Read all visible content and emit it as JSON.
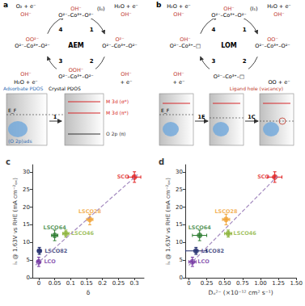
{
  "diagrams": [
    {
      "letter": "a",
      "mechanism": "AEM",
      "nodes": [
        {
          "ligand": "OH⁻",
          "site": "O²⁻–Co³⁺–O²⁻",
          "tag": "(I₀)"
        },
        {
          "ligand": "O²⁻",
          "site": "O²⁻–Co³⁺–O²⁻"
        },
        {
          "ligand": "OOH⁻",
          "site": "O²⁻–Co³⁺–O²⁻"
        },
        {
          "ligand": "OO²⁻",
          "site": "O²⁻–Co³⁺–O²⁻"
        }
      ],
      "steps": [
        {
          "number": "1",
          "reactant": "OH⁻",
          "product": "H₂O + e⁻"
        },
        {
          "number": "2",
          "reactant": "OH⁻",
          "product": "+ e⁻"
        },
        {
          "number": "3",
          "reactant": "OH⁻",
          "product": "H₂O + e⁻"
        },
        {
          "number": "4",
          "reactant": "OH⁻",
          "product": "O₂ + e⁻"
        }
      ],
      "pdos": {
        "left_title": "Adsorbate PDOS",
        "right_title": "Crystal PDOS",
        "fermi": "E_F",
        "adsorbate": "(O 2p)ads",
        "bands": [
          "M 3d (σ*)",
          "M 3d (π*)",
          "O 2p (π)"
        ],
        "steps": [
          "1"
        ]
      }
    },
    {
      "letter": "b",
      "mechanism": "LOM",
      "nodes": [
        {
          "ligand": "OH⁻",
          "site": "O²⁻–Co³⁺–O²⁻",
          "tag": "(I₁)"
        },
        {
          "ligand": "OO⁻",
          "site": "O²⁻–Co³⁺–O²⁻"
        },
        {
          "ligand": "",
          "site": "O²⁻–Co³⁺–□"
        },
        {
          "ligand": "OH⁻",
          "site": "O²⁻–Co³⁺–□"
        }
      ],
      "steps": [
        {
          "number": "1",
          "reactant": "OH⁻",
          "product": "H₂O + e⁻"
        },
        {
          "number": "2",
          "reactant": "",
          "product": "OO + e⁻"
        },
        {
          "number": "3",
          "reactant": "OH⁻",
          "product": "+ e⁻"
        },
        {
          "number": "4",
          "reactant": "OH⁻",
          "product": "H₂O + e⁻"
        }
      ],
      "pdos": {
        "fermi": "E_F",
        "steps": [
          "1E",
          "1C"
        ],
        "note": "Ligand hole (vacancy)"
      }
    }
  ],
  "chart_data": [
    {
      "type": "scatter",
      "title": "c",
      "x_label": "δ",
      "y_label": "iₛ @ 1.63V vs RHE (mA cm⁻²ₒₓ)",
      "xlim": [
        -0.02,
        0.33
      ],
      "xticks": [
        0,
        0.05,
        0.1,
        0.15,
        0.2,
        0.25,
        0.3
      ],
      "ylim": [
        0,
        32
      ],
      "yticks": [
        0,
        5,
        10,
        15,
        20,
        25,
        30
      ],
      "grid": false,
      "fit_line": {
        "x": [
          -0.01,
          0.31
        ],
        "values": [
          3.6,
          29.2
        ],
        "line_style": "dashed",
        "color": "#a58cc0"
      },
      "series": [
        {
          "name": "LCO",
          "color": "#7030a0",
          "x": [
            0
          ],
          "values": [
            4.5
          ],
          "x_error": [
            0.005
          ],
          "y_error": [
            1.3
          ]
        },
        {
          "name": "LSCO82",
          "color": "#1f2a6b",
          "x": [
            0.002
          ],
          "values": [
            7.6
          ],
          "x_error": [
            0.005
          ],
          "y_error": [
            1.0
          ]
        },
        {
          "name": "LSCO64",
          "color": "#2e7d32",
          "x": [
            0.05
          ],
          "values": [
            12
          ],
          "x_error": [
            0.01
          ],
          "y_error": [
            1.5
          ]
        },
        {
          "name": "LSCO46",
          "color": "#8cb33a",
          "x": [
            0.085
          ],
          "values": [
            12.5
          ],
          "x_error": [
            0.01
          ],
          "y_error": [
            1.0
          ]
        },
        {
          "name": "LSCO28",
          "color": "#f0a030",
          "x": [
            0.16
          ],
          "values": [
            16.5
          ],
          "x_error": [
            0.01
          ],
          "y_error": [
            1.5
          ]
        },
        {
          "name": "SCO",
          "color": "#e02020",
          "x": [
            0.3
          ],
          "values": [
            28.5
          ],
          "x_error": [
            0.02
          ],
          "y_error": [
            1.5
          ]
        }
      ]
    },
    {
      "type": "scatter",
      "title": "d",
      "x_label": "Dₒ²⁻ (×10⁻¹² cm² s⁻¹)",
      "y_label": "iₛ @ 1.63V vs RHE (mA cm⁻²ₒₓ)",
      "xlim": [
        -0.05,
        1.5
      ],
      "xticks": [
        0,
        0.25,
        {
          "value": 0.5,
          "label": "0.50"
        },
        0.75,
        {
          "value": 1,
          "label": "1.00"
        },
        1.25,
        {
          "value": 1.5,
          "label": "1.50"
        }
      ],
      "ylim": [
        0,
        32
      ],
      "yticks": [
        0,
        5,
        10,
        15,
        20,
        25,
        30
      ],
      "grid": false,
      "fit_line": {
        "x": [
          0,
          1.25
        ],
        "values": [
          3.5,
          29
        ],
        "line_style": "dashed",
        "color": "#a58cc0"
      },
      "series": [
        {
          "name": "LCO",
          "color": "#7030a0",
          "x": [
            0.05
          ],
          "values": [
            4.5
          ],
          "x_error": [
            0.05
          ],
          "y_error": [
            1.3
          ]
        },
        {
          "name": "LSCO82",
          "color": "#1f2a6b",
          "x": [
            0.1
          ],
          "values": [
            7.6
          ],
          "x_error": [
            0.15
          ],
          "y_error": [
            1.0
          ]
        },
        {
          "name": "LSCO64",
          "color": "#2e7d32",
          "x": [
            0.15
          ],
          "values": [
            12
          ],
          "x_error": [
            0.1
          ],
          "y_error": [
            1.5
          ]
        },
        {
          "name": "LSCO46",
          "color": "#8cb33a",
          "x": [
            0.55
          ],
          "values": [
            12.5
          ],
          "x_error": [
            0.05
          ],
          "y_error": [
            1.0
          ]
        },
        {
          "name": "LSCO28",
          "color": "#f0a030",
          "x": [
            0.52
          ],
          "values": [
            16.5
          ],
          "x_error": [
            0.05
          ],
          "y_error": [
            1.5
          ]
        },
        {
          "name": "SCO",
          "color": "#e02020",
          "x": [
            1.2
          ],
          "values": [
            28.5
          ],
          "x_error": [
            0.1
          ],
          "y_error": [
            1.5
          ]
        }
      ]
    }
  ]
}
